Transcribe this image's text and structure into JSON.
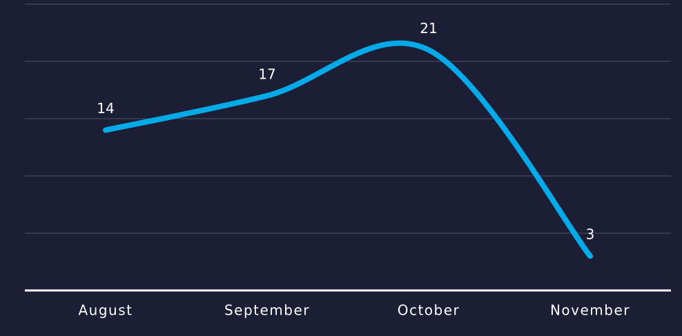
{
  "chart_data": {
    "type": "line",
    "categories": [
      "August",
      "September",
      "October",
      "November"
    ],
    "values": [
      14,
      17,
      21,
      3
    ],
    "color": "#00a9e8",
    "ylim": [
      0,
      25
    ],
    "yticks": [
      0,
      5,
      10,
      15,
      20,
      25
    ],
    "grid": true
  }
}
